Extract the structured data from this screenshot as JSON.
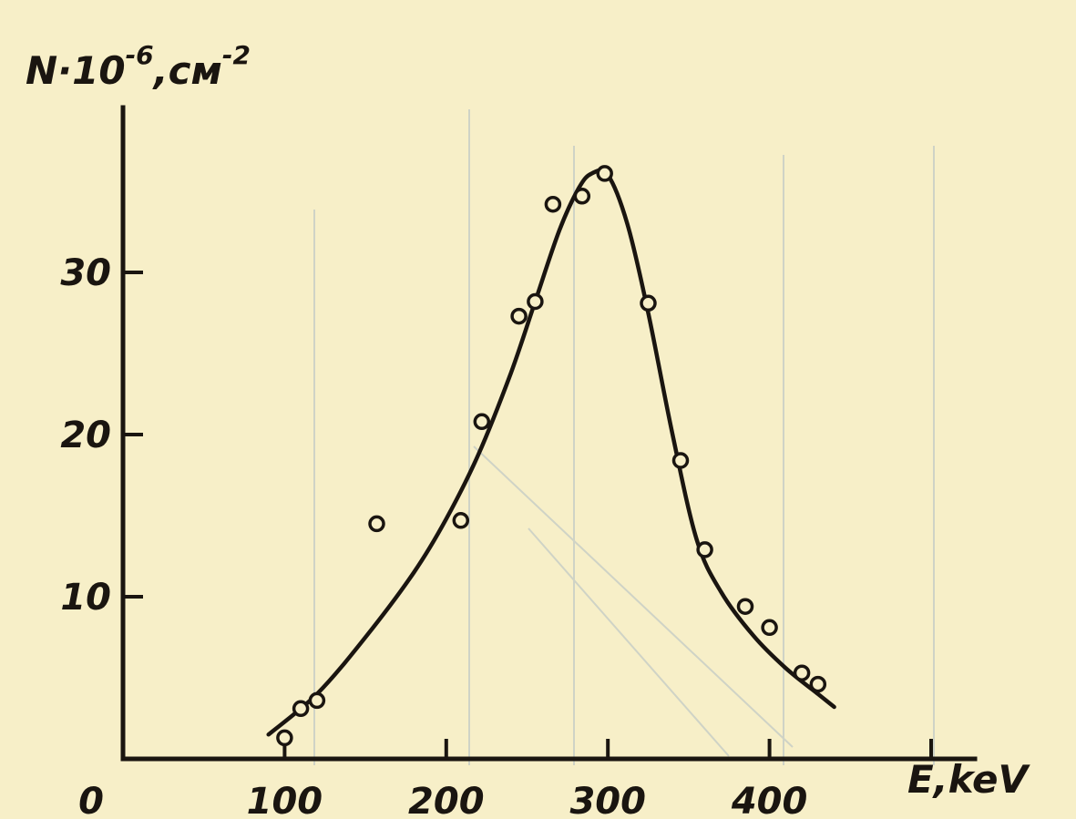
{
  "chart_data": {
    "type": "scatter",
    "xlabel": "E,keV",
    "ylabel_main": "N·10",
    "ylabel_exp": "-6",
    "ylabel_unit": ",см",
    "ylabel_unit_exp": "-2",
    "origin_label": "0",
    "xlim": [
      0,
      520
    ],
    "ylim": [
      0,
      40
    ],
    "x_ticks": [
      100,
      200,
      300,
      400,
      500
    ],
    "x_tick_labels": [
      "100",
      "200",
      "300",
      "400",
      ""
    ],
    "y_ticks": [
      10,
      20,
      30
    ],
    "y_tick_labels": [
      "10",
      "20",
      "30"
    ],
    "grid": false,
    "series": [
      {
        "style": "markers",
        "marker": "open-circle",
        "x": [
          100,
          110,
          120,
          157,
          209,
          222,
          245,
          255,
          266,
          284,
          298,
          325,
          345,
          360,
          385,
          400,
          420,
          430
        ],
        "y": [
          1.3,
          3.1,
          3.6,
          14.5,
          14.7,
          20.8,
          27.3,
          28.2,
          34.2,
          34.7,
          36.1,
          28.1,
          18.4,
          12.9,
          9.4,
          8.1,
          5.3,
          4.6
        ]
      },
      {
        "style": "line",
        "x": [
          90,
          120,
          150,
          180,
          200,
          220,
          240,
          255,
          270,
          282,
          290,
          300,
          312,
          325,
          340,
          355,
          370,
          390,
          410,
          430,
          440
        ],
        "y": [
          1.5,
          4.0,
          7.5,
          11.5,
          14.8,
          18.8,
          23.8,
          28.2,
          32.6,
          35.2,
          36.1,
          36.0,
          33.0,
          27.5,
          20.0,
          13.5,
          10.3,
          7.6,
          5.6,
          4.0,
          3.2
        ]
      }
    ]
  }
}
